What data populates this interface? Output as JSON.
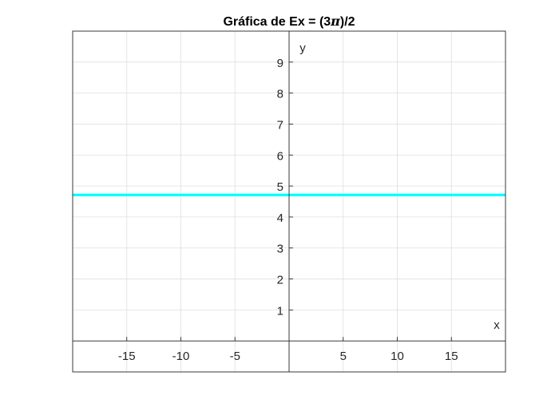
{
  "window": {
    "background": "#ffffff"
  },
  "chart_data": {
    "type": "line",
    "title": "Gráfica de Ex = (3π)/2",
    "title_parts": {
      "prefix": "Gráfica de Ex = (3",
      "symbol": "π",
      "suffix": ")/2"
    },
    "xlabel": "x",
    "ylabel": "y",
    "xlim": [
      -20,
      20
    ],
    "ylim": [
      -1,
      10
    ],
    "x_ticks": [
      -15,
      -10,
      -5,
      5,
      10,
      15
    ],
    "x_tick_labels": [
      "-15",
      "-10",
      "-5",
      "5",
      "10",
      "15"
    ],
    "y_ticks": [
      1,
      2,
      3,
      4,
      5,
      6,
      7,
      8,
      9
    ],
    "y_tick_labels": [
      "1",
      "2",
      "3",
      "4",
      "5",
      "6",
      "7",
      "8",
      "9"
    ],
    "grid": true,
    "axis_location": "origin",
    "series": [
      {
        "x": [
          -20,
          20
        ],
        "y": [
          4.712389,
          4.712389
        ],
        "color": "#00ffff"
      }
    ],
    "colors": {
      "grid": "#dfdfdf",
      "axis": "#262626",
      "box": "#262626"
    }
  }
}
